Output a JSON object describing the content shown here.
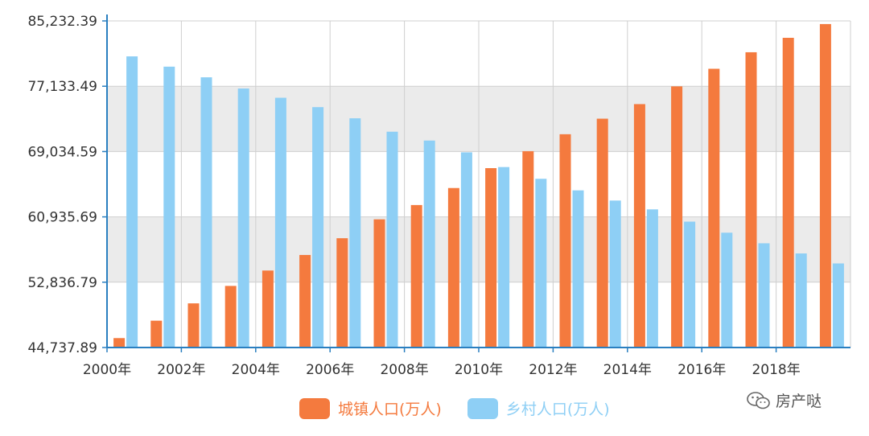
{
  "chart_data": {
    "type": "bar",
    "categories": [
      "2000",
      "2001",
      "2002",
      "2003",
      "2004",
      "2005",
      "2006",
      "2007",
      "2008",
      "2009",
      "2010",
      "2011",
      "2012",
      "2013",
      "2014",
      "2015",
      "2016",
      "2017",
      "2018",
      "2019"
    ],
    "x_tick_labels": [
      "2000年",
      "2002年",
      "2004年",
      "2006年",
      "2008年",
      "2010年",
      "2012年",
      "2014年",
      "2016年",
      "2018年"
    ],
    "y_tick_labels": [
      "44,737.89",
      "52,836.79",
      "60,935.69",
      "69,034.59",
      "77,133.49",
      "85,232.39"
    ],
    "ylim": [
      44737.89,
      85232.39
    ],
    "grid": true,
    "legend_position": "bottom-center",
    "series": [
      {
        "name": "城镇人口(万人)",
        "color": "#F47A3E",
        "values": [
          45906,
          48064,
          50212,
          52376,
          54283,
          56212,
          58288,
          60633,
          62403,
          64512,
          66978,
          69079,
          71182,
          73111,
          74916,
          77116,
          79298,
          81347,
          83137,
          84843
        ]
      },
      {
        "name": "乡村人口(万人)",
        "color": "#8ECFF5",
        "values": [
          80837,
          79563,
          78241,
          76851,
          75705,
          74544,
          73160,
          71496,
          70399,
          68938,
          67113,
          65656,
          64222,
          62961,
          61866,
          60346,
          58973,
          57661,
          56401,
          55162
        ]
      }
    ]
  },
  "watermark": {
    "icon": "wechat-icon",
    "text": "房产哒"
  }
}
